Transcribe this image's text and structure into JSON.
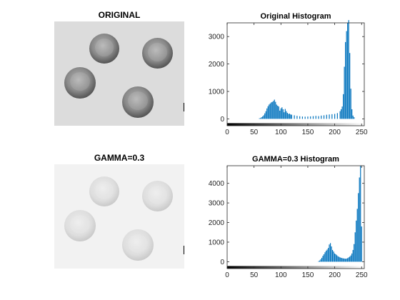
{
  "panels": {
    "original_image": {
      "title": "ORIGINAL"
    },
    "gamma_image": {
      "title": "GAMMA=0.3"
    }
  },
  "chart_data": [
    {
      "type": "bar",
      "title": "Original Histogram",
      "xlabel": "",
      "ylabel": "",
      "xlim": [
        0,
        255
      ],
      "ylim": [
        -250,
        3500
      ],
      "xticks": [
        0,
        50,
        100,
        150,
        200,
        250
      ],
      "yticks": [
        0,
        1000,
        2000,
        3000
      ],
      "x": [
        60,
        62,
        64,
        66,
        68,
        70,
        72,
        74,
        76,
        78,
        80,
        82,
        84,
        86,
        88,
        90,
        92,
        94,
        96,
        98,
        100,
        102,
        104,
        106,
        108,
        110,
        112,
        114,
        116,
        118,
        120,
        125,
        130,
        135,
        140,
        145,
        150,
        155,
        160,
        165,
        170,
        175,
        180,
        185,
        190,
        195,
        200,
        205,
        210,
        212,
        214,
        216,
        218,
        220,
        222,
        224,
        226,
        228,
        230,
        232,
        234,
        236
      ],
      "values": [
        20,
        30,
        60,
        90,
        130,
        200,
        280,
        380,
        460,
        520,
        560,
        600,
        620,
        650,
        700,
        620,
        520,
        480,
        450,
        300,
        380,
        420,
        350,
        240,
        360,
        280,
        220,
        180,
        190,
        160,
        150,
        130,
        110,
        95,
        85,
        80,
        85,
        90,
        100,
        110,
        100,
        120,
        130,
        150,
        160,
        170,
        180,
        210,
        280,
        350,
        450,
        900,
        1900,
        2800,
        3200,
        3500,
        3600,
        2400,
        1100,
        350,
        120,
        60
      ]
    },
    {
      "type": "bar",
      "title": "GAMMA=0.3 Histogram",
      "xlabel": "",
      "ylabel": "",
      "xlim": [
        0,
        255
      ],
      "ylim": [
        -350,
        4900
      ],
      "xticks": [
        0,
        50,
        100,
        150,
        200,
        250
      ],
      "yticks": [
        0,
        1000,
        2000,
        3000,
        4000
      ],
      "x": [
        170,
        172,
        174,
        176,
        178,
        180,
        182,
        184,
        186,
        188,
        190,
        192,
        194,
        196,
        198,
        200,
        202,
        204,
        206,
        208,
        210,
        212,
        214,
        216,
        218,
        220,
        222,
        224,
        226,
        228,
        230,
        232,
        234,
        236,
        238,
        240,
        242,
        244,
        246,
        248,
        250
      ],
      "values": [
        30,
        60,
        120,
        200,
        300,
        380,
        480,
        560,
        620,
        700,
        880,
        950,
        780,
        600,
        520,
        420,
        380,
        330,
        280,
        250,
        220,
        200,
        180,
        170,
        160,
        150,
        160,
        180,
        220,
        260,
        320,
        420,
        600,
        900,
        1500,
        2100,
        2700,
        3500,
        4300,
        4900,
        1800
      ]
    }
  ]
}
